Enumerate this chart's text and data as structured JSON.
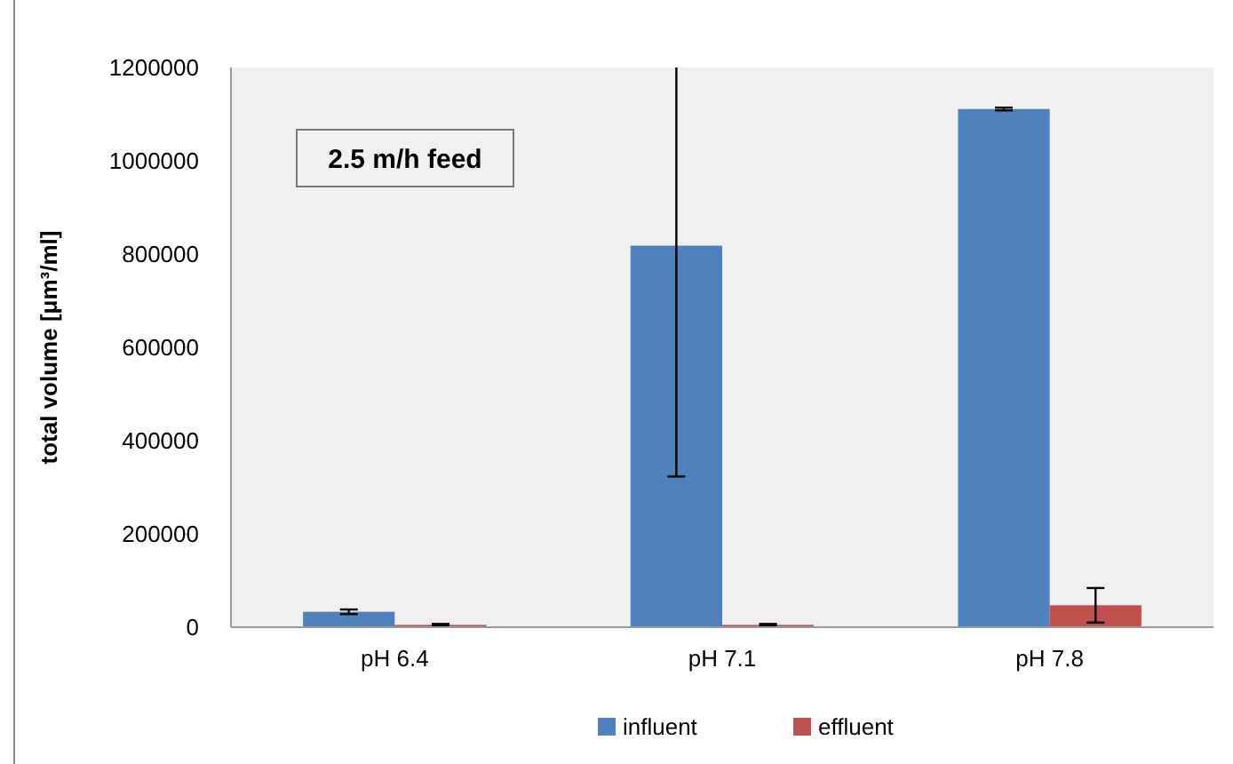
{
  "chart_data": {
    "type": "bar",
    "ylabel": "total volume [μm³/ml]",
    "categories": [
      "pH 6.4",
      "pH 7.1",
      "pH 7.8"
    ],
    "series": [
      {
        "name": "influent",
        "color": "#4f81bd",
        "values": [
          33000,
          818000,
          1111000
        ],
        "errors": [
          5000,
          [
            323000,
            1200000
          ],
          3000
        ]
      },
      {
        "name": "effluent",
        "color": "#c0504d",
        "values": [
          5000,
          5000,
          47000
        ],
        "errors": [
          2000,
          2000,
          37000
        ]
      }
    ],
    "ylim": [
      0,
      1200000
    ],
    "yticks": [
      0,
      200000,
      400000,
      600000,
      800000,
      1000000,
      1200000
    ],
    "grid": false,
    "legend": "bottom",
    "annotations": [
      "2.5 m/h feed"
    ]
  }
}
